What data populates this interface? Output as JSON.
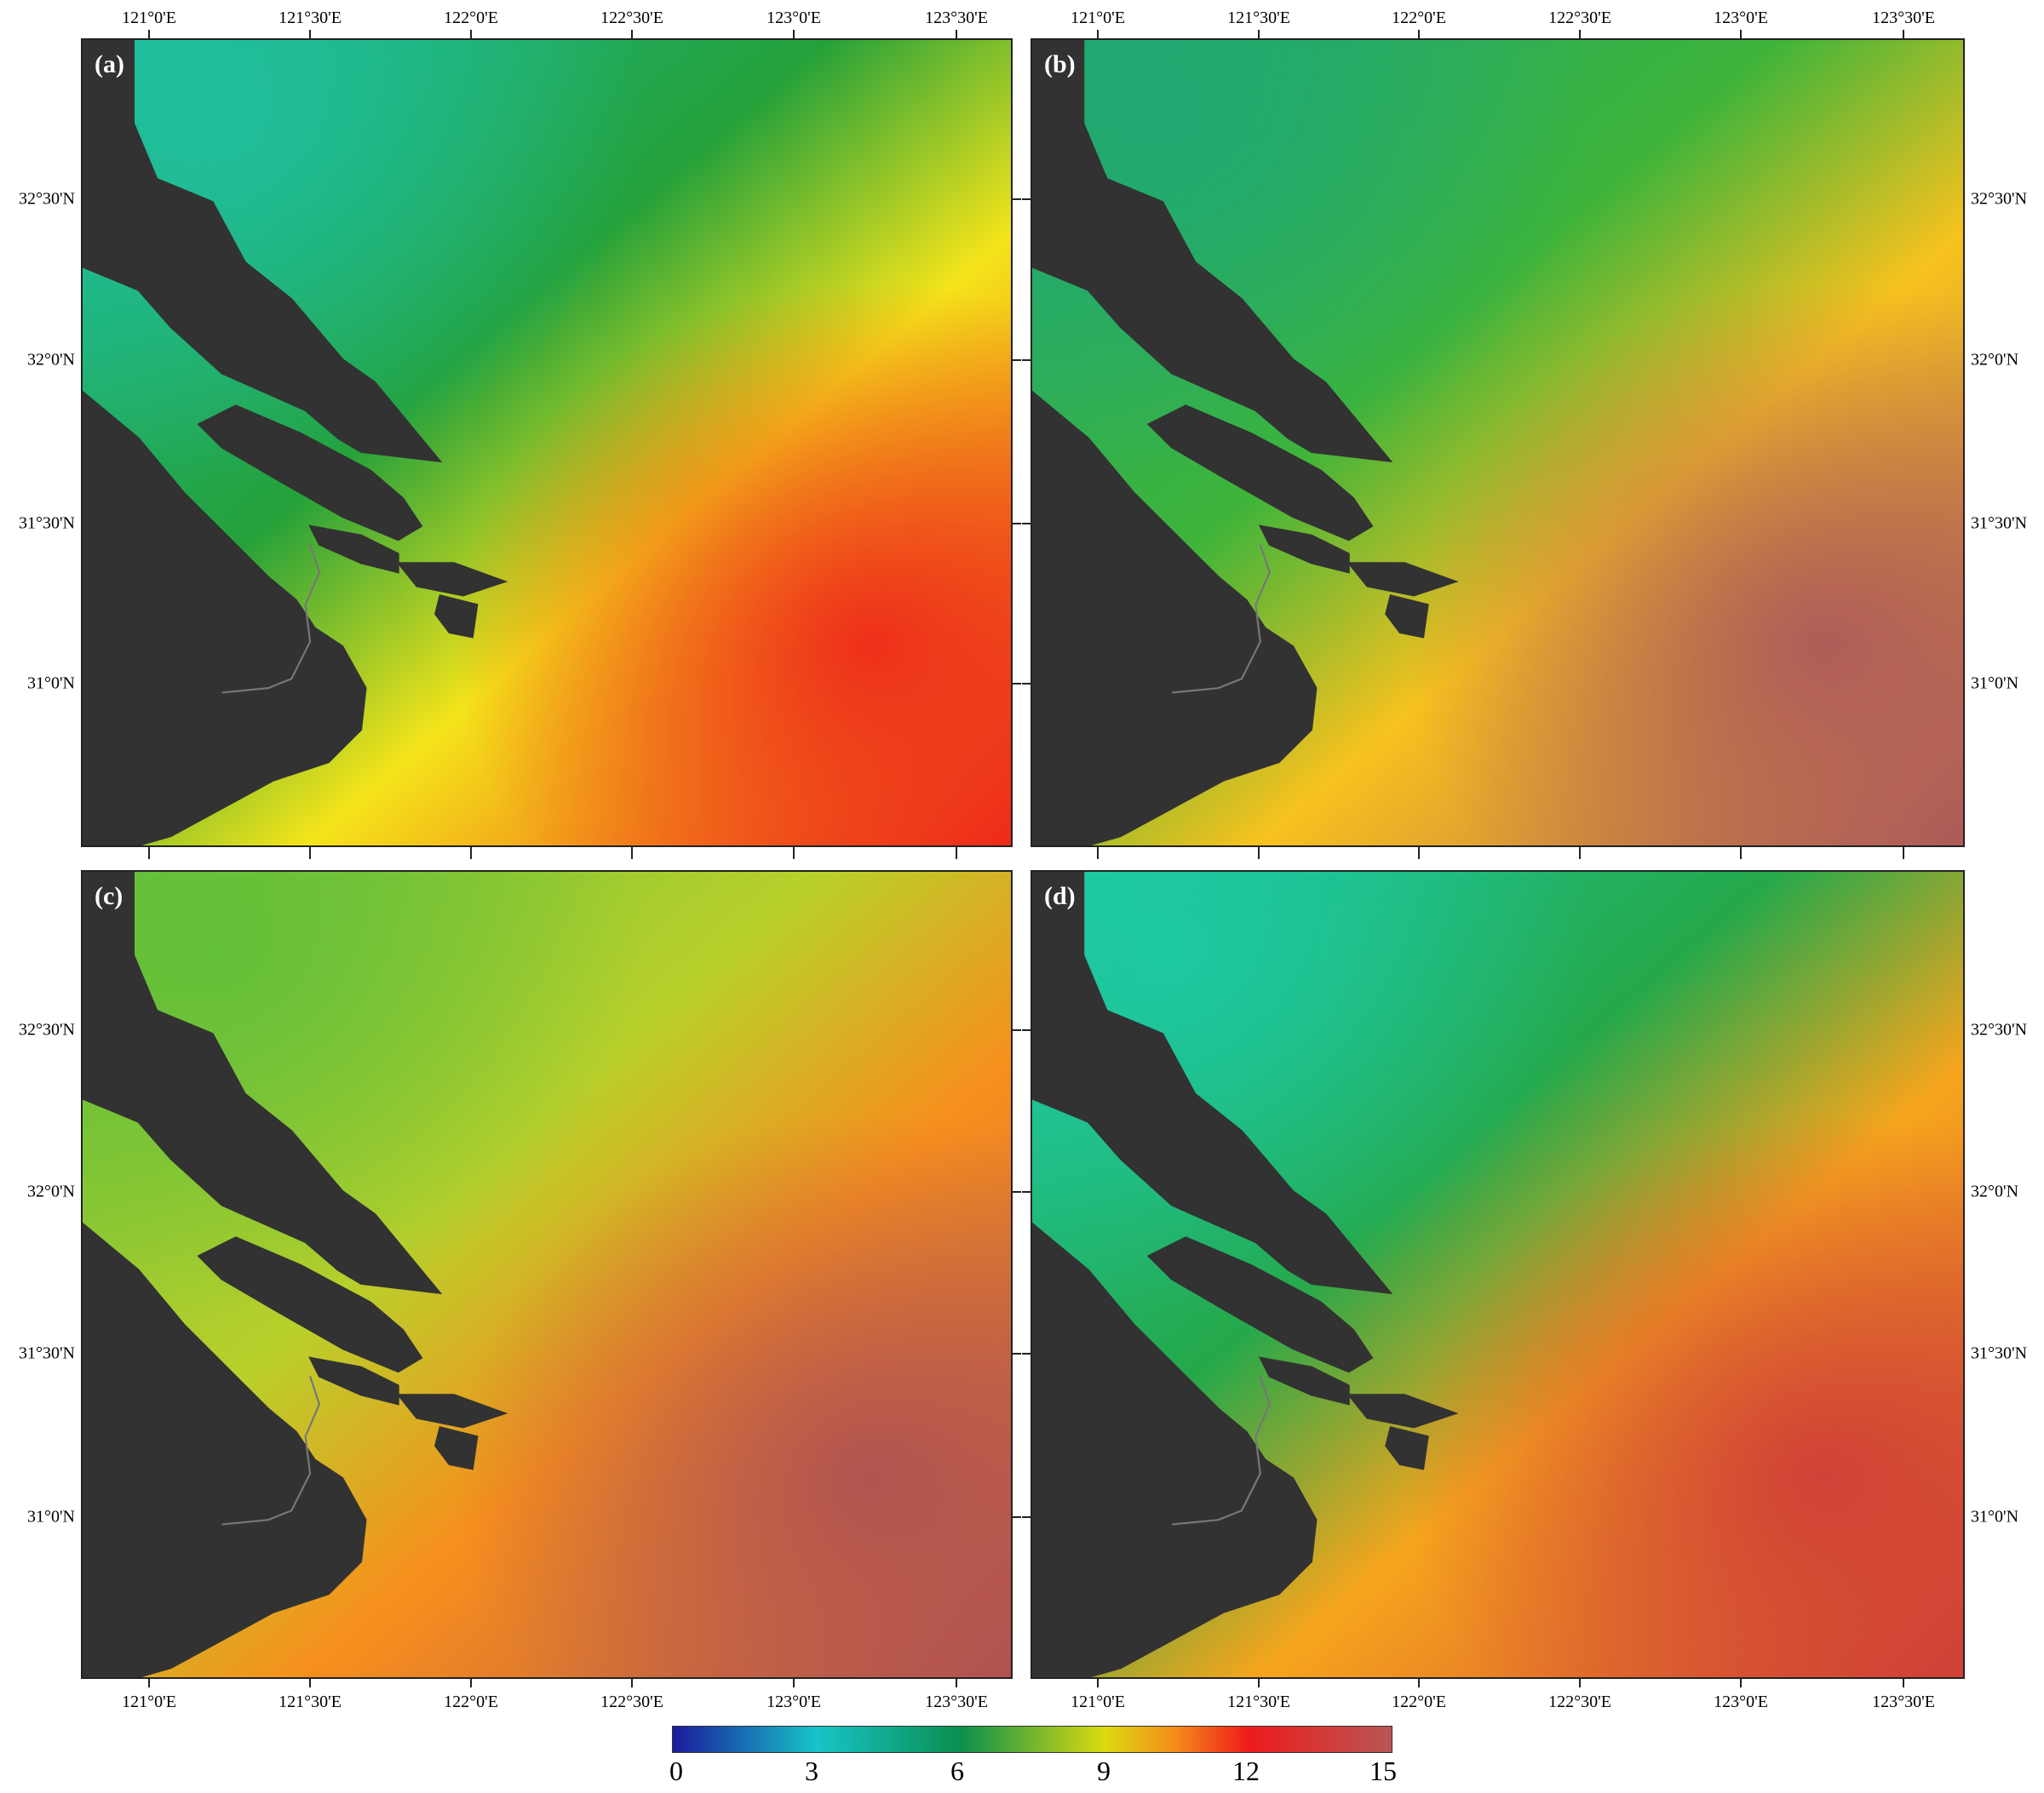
{
  "figure": {
    "panels": [
      {
        "label": "(a)",
        "colors": {
          "sea_nw": "#1fbf9f",
          "sea_mid": "#24a13a",
          "sea_far": "#f4e41a",
          "hot": "#ee2a1a",
          "land": "#323232"
        }
      },
      {
        "label": "(b)",
        "colors": {
          "sea_nw": "#1fa873",
          "sea_mid": "#3eb43a",
          "sea_far": "#f7c21e",
          "hot": "#ad5a5a",
          "land": "#323232"
        }
      },
      {
        "label": "(c)",
        "colors": {
          "sea_nw": "#62bf3a",
          "sea_mid": "#b9d02b",
          "sea_far": "#f78f1c",
          "hot": "#b05252",
          "land": "#323232"
        }
      },
      {
        "label": "(d)",
        "colors": {
          "sea_nw": "#1dc9a4",
          "sea_mid": "#25a84a",
          "sea_far": "#f6a51d",
          "hot": "#cf3f37",
          "land": "#323232"
        }
      }
    ],
    "x_ticks": [
      "121°0'E",
      "121°30'E",
      "122°0'E",
      "122°30'E",
      "123°0'E",
      "123°30'E"
    ],
    "y_ticks": [
      "32°30'N",
      "32°0'N",
      "31°30'N",
      "31°0'N"
    ],
    "colorbar": {
      "ticks": [
        "0",
        "3",
        "6",
        "9",
        "12",
        "15"
      ],
      "range": [
        0,
        15
      ],
      "colors": [
        "#1a1a9c",
        "#17c4c8",
        "#0a8f4e",
        "#dada10",
        "#f58a1a",
        "#ee1b1b",
        "#b95555"
      ]
    }
  }
}
